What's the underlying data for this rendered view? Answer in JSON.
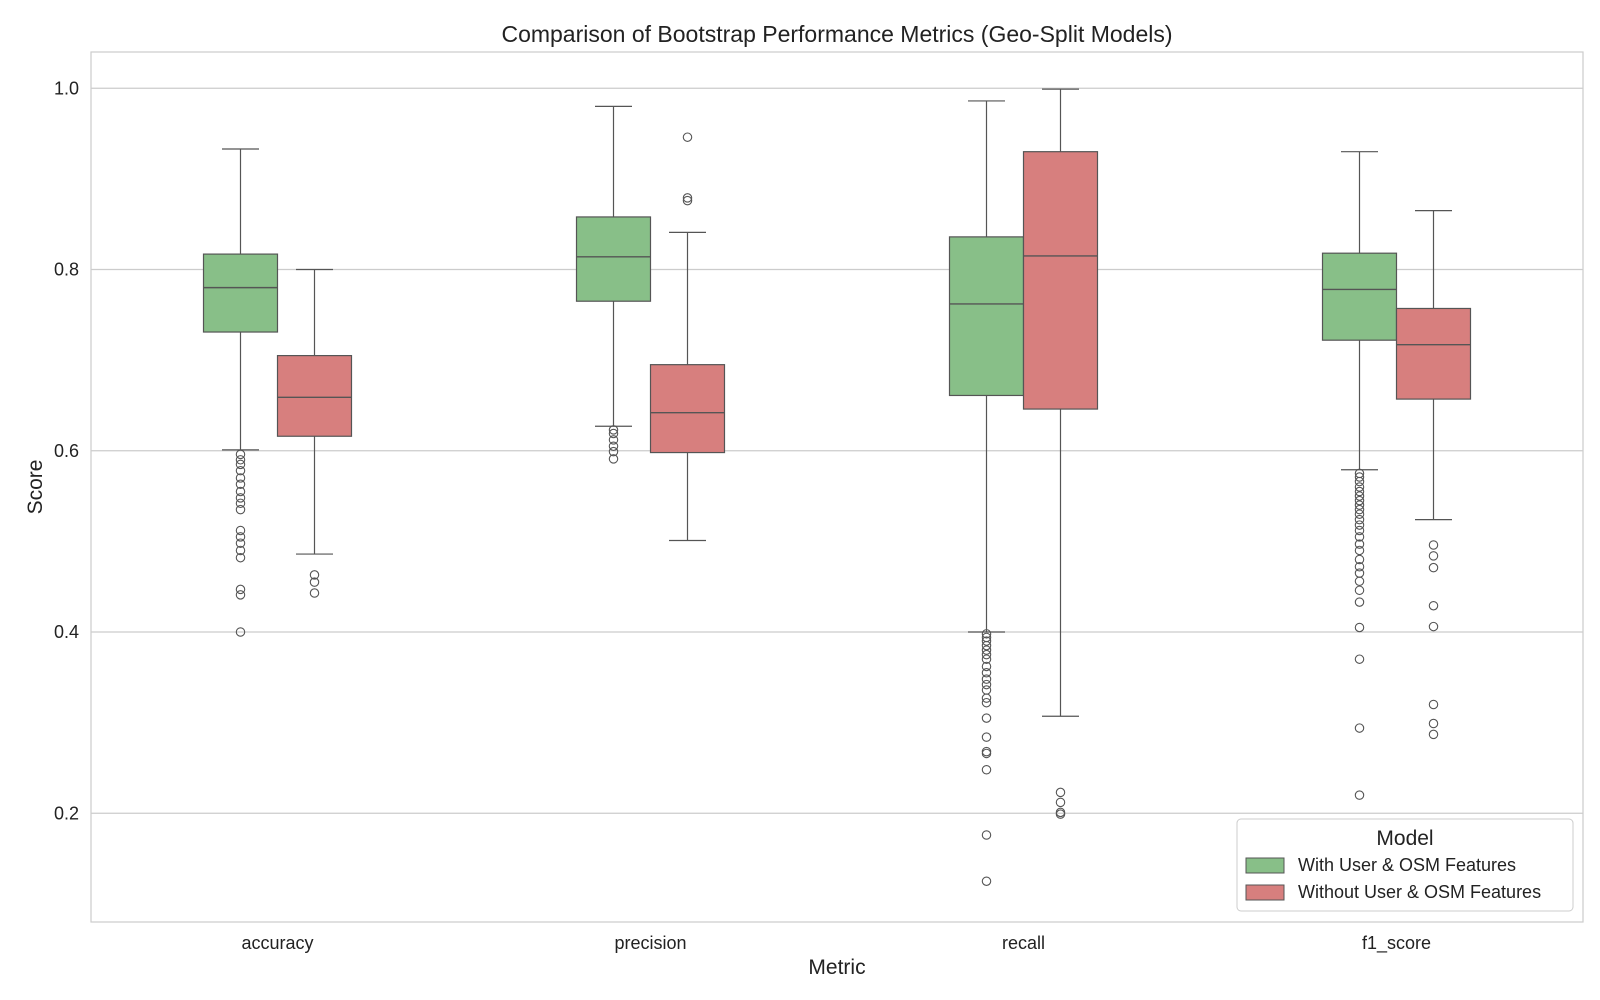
{
  "chart_data": {
    "type": "box",
    "title": "Comparison of Bootstrap Performance Metrics (Geo-Split Models)",
    "xlabel": "Metric",
    "ylabel": "Score",
    "ylim": [
      0.08,
      1.04
    ],
    "yticks": [
      "0.2",
      "0.4",
      "0.6",
      "0.8",
      "1.0"
    ],
    "categories": [
      "accuracy",
      "precision",
      "recall",
      "f1_score"
    ],
    "grid": "horizontal",
    "legend": {
      "title": "Model",
      "position": "bottom-right"
    },
    "series": [
      {
        "name": "With User & OSM Features",
        "color": "#88bf88",
        "boxes": [
          {
            "q1": 0.731,
            "median": 0.78,
            "q3": 0.817,
            "whisker_low": 0.601,
            "whisker_high": 0.933,
            "outliers": [
              0.596,
              0.59,
              0.585,
              0.578,
              0.57,
              0.563,
              0.555,
              0.548,
              0.542,
              0.535,
              0.512,
              0.505,
              0.498,
              0.49,
              0.482,
              0.447,
              0.441,
              0.4
            ]
          },
          {
            "q1": 0.765,
            "median": 0.814,
            "q3": 0.858,
            "whisker_low": 0.627,
            "whisker_high": 0.98,
            "outliers": [
              0.623,
              0.619,
              0.612,
              0.605,
              0.599,
              0.591
            ]
          },
          {
            "q1": 0.661,
            "median": 0.762,
            "q3": 0.836,
            "whisker_low": 0.4,
            "whisker_high": 0.986,
            "outliers": [
              0.398,
              0.394,
              0.39,
              0.385,
              0.38,
              0.375,
              0.37,
              0.362,
              0.355,
              0.348,
              0.342,
              0.336,
              0.327,
              0.322,
              0.305,
              0.284,
              0.268,
              0.266,
              0.248,
              0.176,
              0.125
            ]
          },
          {
            "q1": 0.722,
            "median": 0.778,
            "q3": 0.818,
            "whisker_low": 0.579,
            "whisker_high": 0.93,
            "outliers": [
              0.575,
              0.571,
              0.566,
              0.56,
              0.555,
              0.55,
              0.545,
              0.54,
              0.535,
              0.53,
              0.524,
              0.518,
              0.512,
              0.505,
              0.497,
              0.49,
              0.48,
              0.472,
              0.465,
              0.456,
              0.446,
              0.433,
              0.405,
              0.37,
              0.294,
              0.22
            ]
          }
        ]
      },
      {
        "name": "Without User & OSM Features",
        "color": "#d77f7e",
        "boxes": [
          {
            "q1": 0.616,
            "median": 0.659,
            "q3": 0.705,
            "whisker_low": 0.486,
            "whisker_high": 0.8,
            "outliers": [
              0.463,
              0.455,
              0.443
            ]
          },
          {
            "q1": 0.598,
            "median": 0.642,
            "q3": 0.695,
            "whisker_low": 0.501,
            "whisker_high": 0.841,
            "outliers": [
              0.946,
              0.879,
              0.876
            ]
          },
          {
            "q1": 0.646,
            "median": 0.815,
            "q3": 0.93,
            "whisker_low": 0.307,
            "whisker_high": 0.999,
            "outliers": [
              0.223,
              0.212,
              0.201,
              0.199
            ]
          },
          {
            "q1": 0.657,
            "median": 0.717,
            "q3": 0.757,
            "whisker_low": 0.524,
            "whisker_high": 0.865,
            "outliers": [
              0.496,
              0.484,
              0.471,
              0.429,
              0.406,
              0.32,
              0.299,
              0.287
            ]
          }
        ]
      }
    ]
  }
}
